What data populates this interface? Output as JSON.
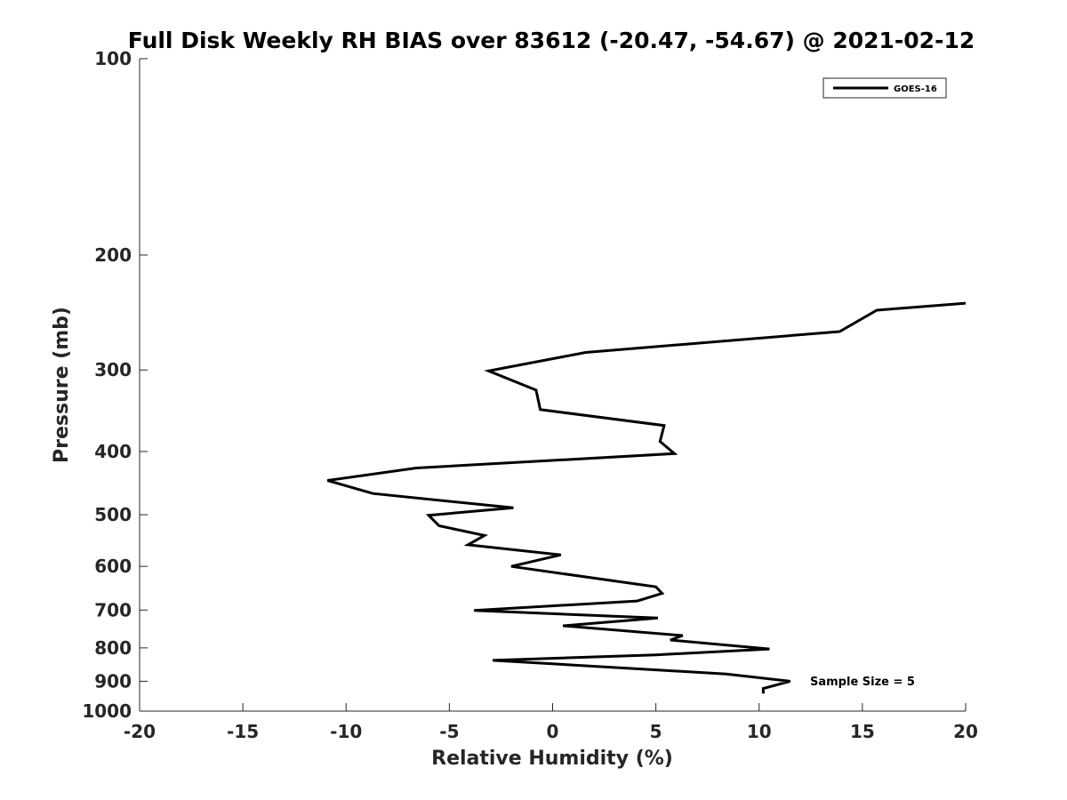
{
  "chart_data": {
    "type": "line",
    "title": "Full Disk Weekly RH BIAS over 83612 (-20.47, -54.67) @ 2021-02-12",
    "xlabel": "Relative Humidity (%)",
    "ylabel": "Pressure (mb)",
    "xlim": [
      -20,
      20
    ],
    "ylim": [
      1000,
      100
    ],
    "y_scale": "log",
    "y_reversed": true,
    "grid": false,
    "legend_location": "top-right",
    "x_ticks": [
      -20,
      -15,
      -10,
      -5,
      0,
      5,
      10,
      15,
      20
    ],
    "x_tick_labels": [
      "-20",
      "-15",
      "-10",
      "-5",
      "0",
      "5",
      "10",
      "15",
      "20"
    ],
    "y_ticks": [
      100,
      200,
      300,
      400,
      500,
      600,
      700,
      800,
      900,
      1000
    ],
    "y_tick_labels": [
      "100",
      "200",
      "300",
      "400",
      "500",
      "600",
      "700",
      "800",
      "900",
      "1000"
    ],
    "annotation": "Sample Size = 5",
    "series": [
      {
        "name": "GOES-16",
        "color": "#000000",
        "points": [
          {
            "x": 20.0,
            "y": 237
          },
          {
            "x": 15.7,
            "y": 243
          },
          {
            "x": 13.9,
            "y": 262
          },
          {
            "x": 1.6,
            "y": 282
          },
          {
            "x": -3.1,
            "y": 301
          },
          {
            "x": -0.8,
            "y": 322
          },
          {
            "x": -0.6,
            "y": 345
          },
          {
            "x": 5.4,
            "y": 365
          },
          {
            "x": 5.2,
            "y": 386
          },
          {
            "x": 5.9,
            "y": 403
          },
          {
            "x": -6.6,
            "y": 424
          },
          {
            "x": -10.9,
            "y": 443
          },
          {
            "x": -8.7,
            "y": 464
          },
          {
            "x": -1.9,
            "y": 488
          },
          {
            "x": -6.0,
            "y": 501
          },
          {
            "x": -5.5,
            "y": 520
          },
          {
            "x": -3.3,
            "y": 538
          },
          {
            "x": -4.1,
            "y": 556
          },
          {
            "x": 0.4,
            "y": 576
          },
          {
            "x": -2.0,
            "y": 600
          },
          {
            "x": 5.0,
            "y": 645
          },
          {
            "x": 5.3,
            "y": 660
          },
          {
            "x": 4.1,
            "y": 678
          },
          {
            "x": -3.8,
            "y": 701
          },
          {
            "x": 5.1,
            "y": 720
          },
          {
            "x": 0.5,
            "y": 740
          },
          {
            "x": 6.3,
            "y": 766
          },
          {
            "x": 5.7,
            "y": 778
          },
          {
            "x": 10.5,
            "y": 803
          },
          {
            "x": 5.0,
            "y": 820
          },
          {
            "x": -2.9,
            "y": 836
          },
          {
            "x": 8.4,
            "y": 877
          },
          {
            "x": 11.5,
            "y": 900
          },
          {
            "x": 10.2,
            "y": 923
          },
          {
            "x": 10.2,
            "y": 940
          }
        ]
      }
    ]
  }
}
